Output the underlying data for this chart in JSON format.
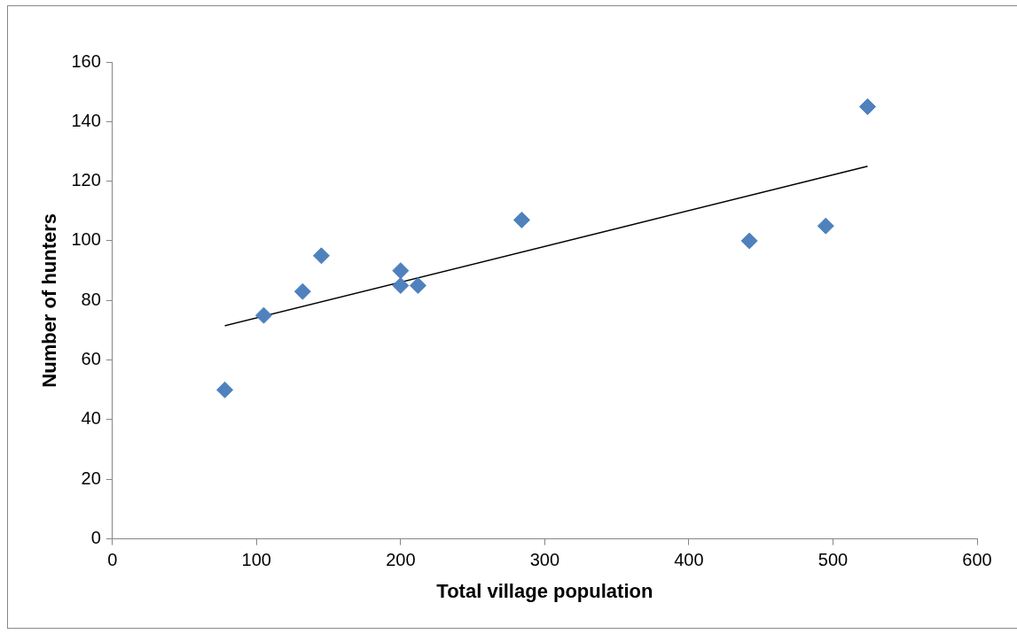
{
  "chart_data": {
    "type": "scatter",
    "xlabel": "Total village population",
    "ylabel": "Number of hunters",
    "xlim": [
      0,
      600
    ],
    "xticks": [
      0,
      100,
      200,
      300,
      400,
      500,
      600
    ],
    "ylim": [
      0,
      160
    ],
    "yticks": [
      0,
      20,
      40,
      60,
      80,
      100,
      120,
      140,
      160
    ],
    "grid": false,
    "legend": false,
    "marker": "diamond",
    "series": [
      {
        "color": "#4f81bd",
        "x": [
          78,
          105,
          132,
          145,
          200,
          200,
          212,
          284,
          442,
          495,
          524
        ],
        "values": [
          50,
          75,
          83,
          95,
          90,
          85,
          85,
          107,
          100,
          105,
          145
        ]
      },
      {
        "type": "line",
        "marker": "none",
        "color": "#000000",
        "x": [
          78,
          524
        ],
        "values": [
          71.5,
          125
        ]
      }
    ]
  }
}
